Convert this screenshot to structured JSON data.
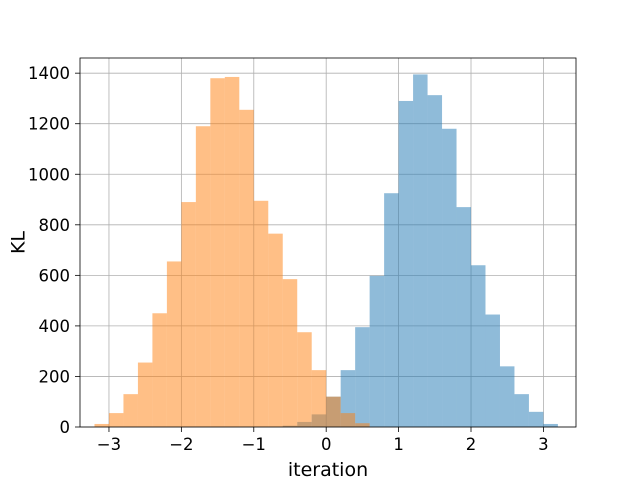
{
  "chart_data": {
    "type": "histogram",
    "title": "",
    "xlabel": "iteration",
    "ylabel": "KL",
    "xlim": [
      -3.4,
      3.45
    ],
    "ylim": [
      0,
      1460
    ],
    "x_ticks": [
      -3,
      -2,
      -1,
      0,
      1,
      2,
      3
    ],
    "x_tick_labels": [
      "−3",
      "−2",
      "−1",
      "0",
      "1",
      "2",
      "3"
    ],
    "y_ticks": [
      0,
      200,
      400,
      600,
      800,
      1000,
      1200,
      1400
    ],
    "y_tick_labels": [
      "0",
      "200",
      "400",
      "600",
      "800",
      "1000",
      "1200",
      "1400"
    ],
    "grid": true,
    "legend": "none",
    "series": [
      {
        "color": "#1f77b4",
        "opacity": 0.5,
        "bin_edges": [
          -0.6,
          -0.4,
          -0.2,
          0.0,
          0.2,
          0.4,
          0.6,
          0.8,
          1.0,
          1.2,
          1.4,
          1.6,
          1.8,
          2.0,
          2.2,
          2.4,
          2.6,
          2.8,
          3.0,
          3.2
        ],
        "counts": [
          5,
          20,
          50,
          120,
          225,
          395,
          598,
          925,
          1290,
          1395,
          1313,
          1180,
          870,
          640,
          445,
          240,
          130,
          60,
          12
        ]
      },
      {
        "color": "#ff7f0e",
        "opacity": 0.5,
        "bin_edges": [
          -3.2,
          -3.0,
          -2.8,
          -2.6,
          -2.4,
          -2.2,
          -2.0,
          -1.8,
          -1.6,
          -1.4,
          -1.2,
          -1.0,
          -0.8,
          -0.6,
          -0.4,
          -0.2,
          0.0,
          0.2,
          0.4,
          0.6
        ],
        "counts": [
          12,
          55,
          130,
          255,
          450,
          655,
          890,
          1190,
          1380,
          1385,
          1255,
          895,
          765,
          585,
          375,
          225,
          120,
          55,
          15
        ]
      }
    ]
  }
}
